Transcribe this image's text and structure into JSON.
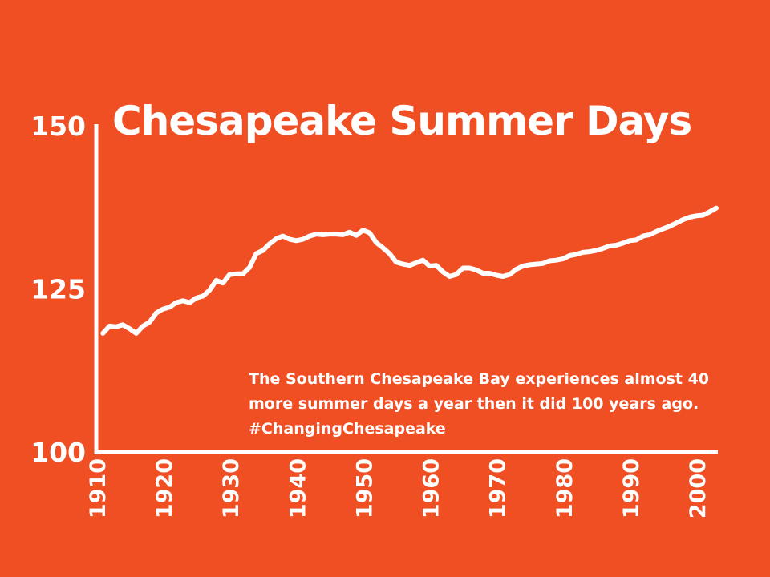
{
  "colors": {
    "background": "#F04E23",
    "foreground": "#FFFFFF"
  },
  "chart_data": {
    "type": "line",
    "title": "Chesapeake Summer Days",
    "annotation": "The Southern Chesapeake Bay experiences almost 40 more summer days a year then it did 100 years ago. #ChangingChesapeake",
    "xlabel": "",
    "ylabel": "",
    "xlim": [
      1910,
      2003
    ],
    "ylim": [
      100,
      150
    ],
    "x_ticks": [
      "1910",
      "1920",
      "1930",
      "1940",
      "1950",
      "1960",
      "1970",
      "1980",
      "1990",
      "2000"
    ],
    "y_ticks": [
      "100",
      "125",
      "150"
    ],
    "grid": false,
    "series": [
      {
        "values": [
          [
            1911,
            118.2
          ],
          [
            1912,
            119.3
          ],
          [
            1913,
            119.2
          ],
          [
            1914,
            119.5
          ],
          [
            1915,
            118.9
          ],
          [
            1916,
            118.2
          ],
          [
            1917,
            119.3
          ],
          [
            1918,
            119.9
          ],
          [
            1919,
            121.3
          ],
          [
            1920,
            121.9
          ],
          [
            1921,
            122.2
          ],
          [
            1922,
            122.9
          ],
          [
            1923,
            123.2
          ],
          [
            1924,
            122.9
          ],
          [
            1925,
            123.6
          ],
          [
            1926,
            123.9
          ],
          [
            1927,
            124.8
          ],
          [
            1928,
            126.3
          ],
          [
            1929,
            125.9
          ],
          [
            1930,
            127.2
          ],
          [
            1931,
            127.3
          ],
          [
            1932,
            127.3
          ],
          [
            1933,
            128.3
          ],
          [
            1934,
            130.4
          ],
          [
            1935,
            130.9
          ],
          [
            1936,
            131.9
          ],
          [
            1937,
            132.7
          ],
          [
            1938,
            133.1
          ],
          [
            1939,
            132.6
          ],
          [
            1940,
            132.4
          ],
          [
            1941,
            132.6
          ],
          [
            1942,
            133.1
          ],
          [
            1943,
            133.4
          ],
          [
            1944,
            133.3
          ],
          [
            1945,
            133.4
          ],
          [
            1946,
            133.4
          ],
          [
            1947,
            133.3
          ],
          [
            1948,
            133.7
          ],
          [
            1949,
            133.2
          ],
          [
            1950,
            134.0
          ],
          [
            1951,
            133.6
          ],
          [
            1952,
            132.1
          ],
          [
            1953,
            131.3
          ],
          [
            1954,
            130.4
          ],
          [
            1955,
            129.1
          ],
          [
            1956,
            128.8
          ],
          [
            1957,
            128.6
          ],
          [
            1958,
            129.0
          ],
          [
            1959,
            129.4
          ],
          [
            1960,
            128.5
          ],
          [
            1961,
            128.6
          ],
          [
            1962,
            127.6
          ],
          [
            1963,
            126.9
          ],
          [
            1964,
            127.2
          ],
          [
            1965,
            128.2
          ],
          [
            1966,
            128.2
          ],
          [
            1967,
            127.9
          ],
          [
            1968,
            127.4
          ],
          [
            1969,
            127.4
          ],
          [
            1970,
            127.1
          ],
          [
            1971,
            126.9
          ],
          [
            1972,
            127.2
          ],
          [
            1973,
            128.0
          ],
          [
            1974,
            128.5
          ],
          [
            1975,
            128.7
          ],
          [
            1976,
            128.8
          ],
          [
            1977,
            128.9
          ],
          [
            1978,
            129.3
          ],
          [
            1979,
            129.4
          ],
          [
            1980,
            129.6
          ],
          [
            1981,
            130.1
          ],
          [
            1982,
            130.3
          ],
          [
            1983,
            130.6
          ],
          [
            1984,
            130.7
          ],
          [
            1985,
            130.9
          ],
          [
            1986,
            131.2
          ],
          [
            1987,
            131.6
          ],
          [
            1988,
            131.7
          ],
          [
            1989,
            132.0
          ],
          [
            1990,
            132.4
          ],
          [
            1991,
            132.5
          ],
          [
            1992,
            133.1
          ],
          [
            1993,
            133.3
          ],
          [
            1994,
            133.8
          ],
          [
            1995,
            134.2
          ],
          [
            1996,
            134.6
          ],
          [
            1997,
            135.1
          ],
          [
            1998,
            135.6
          ],
          [
            1999,
            136.0
          ],
          [
            2000,
            136.2
          ],
          [
            2001,
            136.3
          ],
          [
            2002,
            136.8
          ],
          [
            2003,
            137.4
          ]
        ]
      }
    ]
  }
}
